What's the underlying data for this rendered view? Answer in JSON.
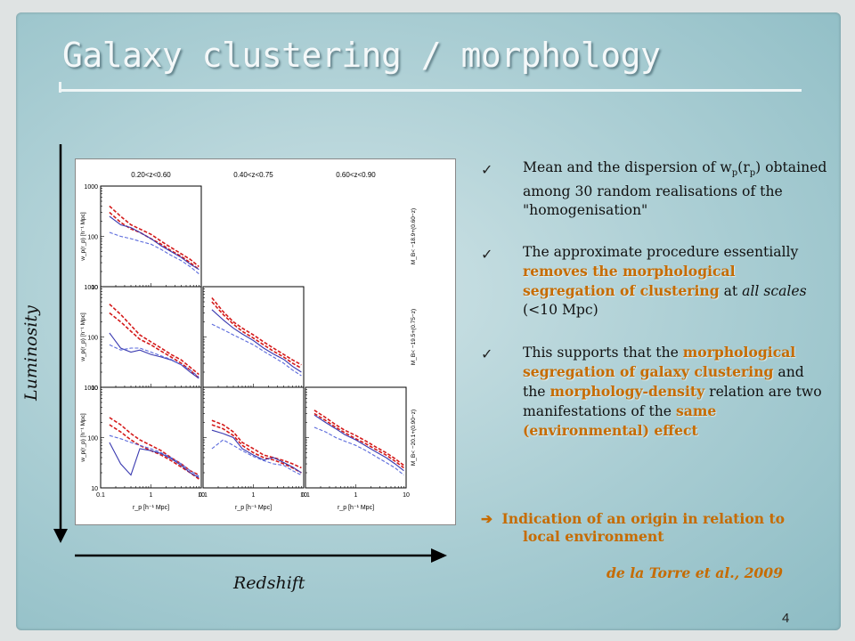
{
  "slide": {
    "title": "Galaxy clustering / morphology",
    "page_number": "4"
  },
  "axes_labels": {
    "vertical": "Luminosity",
    "horizontal": "Redshift"
  },
  "figure": {
    "panel_titles": [
      "0.20<z<0.60",
      "0.40<z<0.75",
      "0.60<z<0.90"
    ],
    "row_labels": [
      "M_B< −18.9+(0.60−z)",
      "M_B< −19.5+(0.75−z)",
      "M_B< −20.1+(0.90−z)"
    ],
    "ylabel": "w_p(r_p) [h⁻¹ Mpc]",
    "xlabel": "r_p [h⁻¹ Mpc]",
    "y_ticks": [
      "1000",
      "100",
      "10"
    ],
    "x_ticks": [
      "0.1",
      "1",
      "10"
    ]
  },
  "chart_data": {
    "type": "line",
    "xscale": "log",
    "yscale": "log",
    "xlim": [
      0.1,
      10
    ],
    "ylim": [
      10,
      1000
    ],
    "panels": [
      {
        "row": 0,
        "col": 0,
        "x": [
          0.15,
          0.25,
          0.4,
          0.6,
          1,
          1.6,
          2.5,
          4,
          6,
          9
        ],
        "series": [
          {
            "color": "#d41a1a",
            "style": "dashed",
            "values": [
              400,
              250,
              170,
              140,
              110,
              80,
              60,
              45,
              35,
              25
            ]
          },
          {
            "color": "#d41a1a",
            "style": "dashed",
            "values": [
              300,
              190,
              140,
              120,
              90,
              70,
              52,
              40,
              30,
              22
            ]
          },
          {
            "color": "#3a3ab0",
            "style": "solid",
            "values": [
              250,
              170,
              150,
              120,
              90,
              65,
              50,
              38,
              28,
              22
            ]
          },
          {
            "color": "#5a6adc",
            "style": "dashed",
            "values": [
              120,
              100,
              90,
              80,
              70,
              55,
              42,
              33,
              25,
              18
            ]
          }
        ]
      },
      {
        "row": 1,
        "col": 0,
        "x": [
          0.15,
          0.25,
          0.4,
          0.6,
          1,
          1.6,
          2.5,
          4,
          6,
          9
        ],
        "series": [
          {
            "color": "#d41a1a",
            "style": "dashed",
            "values": [
              450,
              280,
              170,
              110,
              80,
              60,
              45,
              35,
              25,
              18
            ]
          },
          {
            "color": "#d41a1a",
            "style": "dashed",
            "values": [
              300,
              200,
              130,
              90,
              70,
              52,
              40,
              30,
              22,
              15
            ]
          },
          {
            "color": "#3a3ab0",
            "style": "solid",
            "values": [
              120,
              60,
              50,
              55,
              45,
              40,
              35,
              28,
              20,
              15
            ]
          },
          {
            "color": "#5a6adc",
            "style": "dashed",
            "values": [
              70,
              55,
              60,
              60,
              50,
              42,
              36,
              28,
              22,
              16
            ]
          }
        ]
      },
      {
        "row": 1,
        "col": 1,
        "x": [
          0.15,
          0.25,
          0.4,
          0.6,
          1,
          1.6,
          2.5,
          4,
          6,
          9
        ],
        "series": [
          {
            "color": "#d41a1a",
            "style": "dashed",
            "values": [
              600,
              320,
              200,
              150,
              110,
              80,
              60,
              45,
              35,
              28
            ]
          },
          {
            "color": "#d41a1a",
            "style": "dashed",
            "values": [
              500,
              280,
              180,
              130,
              95,
              70,
              52,
              40,
              30,
              24
            ]
          },
          {
            "color": "#3a3ab0",
            "style": "solid",
            "values": [
              350,
              220,
              150,
              115,
              85,
              60,
              46,
              36,
              26,
              20
            ]
          },
          {
            "color": "#5a6adc",
            "style": "dashed",
            "values": [
              180,
              140,
              110,
              90,
              70,
              52,
              40,
              30,
              22,
              17
            ]
          }
        ]
      },
      {
        "row": 2,
        "col": 0,
        "x": [
          0.15,
          0.25,
          0.4,
          0.6,
          1,
          1.6,
          2.5,
          4,
          6,
          9
        ],
        "series": [
          {
            "color": "#d41a1a",
            "style": "dashed",
            "values": [
              250,
              180,
              120,
              90,
              70,
              55,
              40,
              30,
              22,
              18
            ]
          },
          {
            "color": "#d41a1a",
            "style": "dashed",
            "values": [
              180,
              130,
              90,
              70,
              55,
              45,
              35,
              26,
              20,
              15
            ]
          },
          {
            "color": "#3a3ab0",
            "style": "solid",
            "values": [
              80,
              30,
              18,
              60,
              55,
              48,
              38,
              28,
              20,
              16
            ]
          },
          {
            "color": "#5a6adc",
            "style": "dashed",
            "values": [
              110,
              95,
              80,
              70,
              60,
              50,
              40,
              30,
              22,
              17
            ]
          }
        ]
      },
      {
        "row": 2,
        "col": 1,
        "x": [
          0.15,
          0.25,
          0.4,
          0.6,
          1,
          1.6,
          2.5,
          4,
          6,
          9
        ],
        "series": [
          {
            "color": "#d41a1a",
            "style": "dashed",
            "values": [
              220,
              180,
              130,
              80,
              60,
              45,
              40,
              35,
              30,
              25
            ]
          },
          {
            "color": "#d41a1a",
            "style": "dashed",
            "values": [
              180,
              150,
              110,
              70,
              50,
              40,
              36,
              30,
              25,
              20
            ]
          },
          {
            "color": "#3a3ab0",
            "style": "solid",
            "values": [
              140,
              120,
              100,
              60,
              45,
              36,
              40,
              32,
              26,
              20
            ]
          },
          {
            "color": "#5a6adc",
            "style": "dashed",
            "values": [
              60,
              90,
              70,
              55,
              42,
              35,
              30,
              28,
              22,
              18
            ]
          }
        ]
      },
      {
        "row": 2,
        "col": 2,
        "x": [
          0.15,
          0.25,
          0.4,
          0.6,
          1,
          1.6,
          2.5,
          4,
          6,
          9
        ],
        "series": [
          {
            "color": "#d41a1a",
            "style": "dashed",
            "values": [
              350,
              250,
              180,
              140,
              110,
              85,
              65,
              50,
              38,
              28
            ]
          },
          {
            "color": "#d41a1a",
            "style": "dashed",
            "values": [
              300,
              220,
              160,
              125,
              95,
              75,
              58,
              45,
              34,
              25
            ]
          },
          {
            "color": "#3a3ab0",
            "style": "solid",
            "values": [
              280,
              200,
              150,
              115,
              90,
              68,
              52,
              40,
              30,
              22
            ]
          },
          {
            "color": "#5a6adc",
            "style": "dashed",
            "values": [
              160,
              130,
              100,
              85,
              70,
              55,
              42,
              32,
              25,
              18
            ]
          }
        ]
      }
    ]
  },
  "bullets": [
    {
      "segments": [
        {
          "text": "Mean and the dispersion of w"
        },
        {
          "text": "p",
          "sub": true
        },
        {
          "text": "(r"
        },
        {
          "text": "p",
          "sub": true
        },
        {
          "text": ") obtained among 30 random realisations of the \"homogenisation\""
        }
      ]
    },
    {
      "segments": [
        {
          "text": "The approximate procedure essentially "
        },
        {
          "text": "removes the morphological segregation of clustering",
          "highlight": true
        },
        {
          "text": " at "
        },
        {
          "text": "all scales",
          "italic": true
        },
        {
          "text": " (<10 Mpc)"
        }
      ]
    },
    {
      "segments": [
        {
          "text": "This supports that the "
        },
        {
          "text": "morphological segregation of galaxy clustering",
          "highlight": true
        },
        {
          "text": " and the "
        },
        {
          "text": "morphology-density",
          "highlight": true
        },
        {
          "text": " relation are two manifestations of the "
        },
        {
          "text": "same (environmental) effect",
          "highlight": true
        }
      ]
    }
  ],
  "indication": {
    "arrow": "➔",
    "line1": "Indication of  an origin in relation to",
    "line2": "local environment"
  },
  "citation": "de la Torre et al., 2009",
  "colors": {
    "highlight": "#c66b00",
    "red_curve": "#d41a1a",
    "blue_curve": "#3a3ab0",
    "title_text": "#f4f8f9"
  }
}
